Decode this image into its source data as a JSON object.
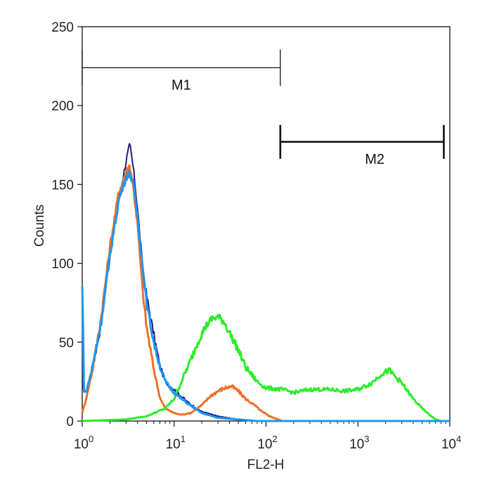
{
  "chart_data": {
    "type": "line",
    "xlabel": "FL2-H",
    "ylabel": "Counts",
    "x_scale": "log",
    "xlim": [
      1,
      10000
    ],
    "ylim": [
      0,
      250
    ],
    "grid": false,
    "x_ticks": [
      {
        "value": 1,
        "base": "10",
        "exp": "0"
      },
      {
        "value": 10,
        "base": "10",
        "exp": "1"
      },
      {
        "value": 100,
        "base": "10",
        "exp": "2"
      },
      {
        "value": 1000,
        "base": "10",
        "exp": "3"
      },
      {
        "value": 10000,
        "base": "10",
        "exp": "4"
      }
    ],
    "y_ticks": [
      {
        "value": 0,
        "label": "0"
      },
      {
        "value": 50,
        "label": "50"
      },
      {
        "value": 100,
        "label": "100"
      },
      {
        "value": 150,
        "label": "150"
      },
      {
        "value": 200,
        "label": "200"
      },
      {
        "value": 250,
        "label": "250"
      }
    ],
    "markers": [
      {
        "label": "M1",
        "x_start": 1.0,
        "x_end": 143,
        "y": 224
      },
      {
        "label": "M2",
        "x_start": 143,
        "x_end": 8600,
        "y": 177
      }
    ],
    "series": [
      {
        "color": "#1e1e7a",
        "x": [
          1.0,
          1.02,
          1.1,
          1.3,
          1.6,
          2.0,
          2.5,
          3.0,
          3.3,
          3.6,
          4.0,
          4.5,
          5.0,
          6.0,
          7.0,
          8.0,
          10,
          14,
          20,
          30,
          50,
          80,
          150,
          1000,
          10000
        ],
        "y": [
          80,
          20,
          18,
          35,
          60,
          105,
          140,
          165,
          175,
          160,
          135,
          100,
          80,
          55,
          35,
          25,
          20,
          12,
          6,
          3,
          1,
          0,
          0,
          0,
          0
        ]
      },
      {
        "color": "#f07028",
        "x": [
          1.0,
          1.1,
          1.3,
          1.6,
          2.0,
          2.5,
          3.0,
          3.3,
          3.6,
          4.0,
          4.5,
          5.0,
          6.0,
          7.0,
          8.0,
          10,
          12,
          15,
          20,
          25,
          30,
          36,
          42,
          50,
          60,
          75,
          90,
          110,
          150,
          1000,
          10000
        ],
        "y": [
          5,
          14,
          33,
          65,
          110,
          145,
          158,
          162,
          148,
          125,
          85,
          60,
          33,
          15,
          8,
          5,
          4,
          5,
          10,
          16,
          19,
          21,
          22,
          19,
          14,
          10,
          6,
          3,
          0,
          0,
          0
        ]
      },
      {
        "color": "#2aee2a",
        "x": [
          1.0,
          3.0,
          5.0,
          8.0,
          10,
          12,
          15,
          18,
          22,
          26,
          30,
          35,
          40,
          50,
          60,
          80,
          100,
          150,
          200,
          300,
          400,
          500,
          700,
          1000,
          1400,
          1800,
          2200,
          3000,
          4000,
          5000,
          6000,
          7000,
          8000,
          10000
        ],
        "y": [
          0,
          1,
          3,
          8,
          14,
          25,
          38,
          50,
          60,
          65,
          66,
          63,
          56,
          45,
          34,
          25,
          21,
          20,
          18,
          20,
          20,
          20,
          19,
          20,
          24,
          30,
          32,
          24,
          14,
          8,
          4,
          1,
          0,
          0
        ]
      },
      {
        "color": "#1e96f0",
        "x": [
          1.0,
          1.015,
          1.04,
          1.1,
          1.3,
          1.6,
          2.0,
          2.5,
          3.0,
          3.3,
          3.6,
          4.0,
          4.5,
          5.0,
          6.0,
          7.0,
          8.0,
          10,
          12,
          15,
          20,
          30,
          50,
          80,
          150,
          1000,
          10000
        ],
        "y": [
          85,
          75,
          20,
          18,
          35,
          62,
          105,
          140,
          155,
          157,
          150,
          130,
          100,
          75,
          50,
          35,
          25,
          18,
          14,
          10,
          5,
          2,
          1,
          0,
          0,
          0,
          0
        ]
      }
    ]
  }
}
